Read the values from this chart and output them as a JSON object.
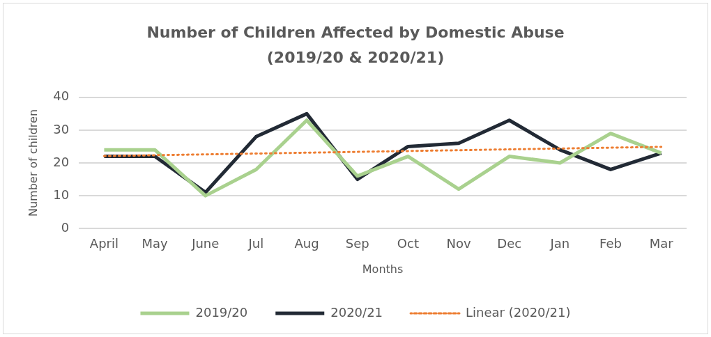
{
  "chart_data": {
    "type": "line",
    "title": "Number of Children Affected by Domestic Abuse (2019/20 & 2020/21)",
    "xlabel": "Months",
    "ylabel": "Number of children",
    "categories": [
      "April",
      "May",
      "June",
      "Jul",
      "Aug",
      "Sep",
      "Oct",
      "Nov",
      "Dec",
      "Jan",
      "Feb",
      "Mar"
    ],
    "series": [
      {
        "name": "2019/20",
        "color": "#a9d18e",
        "values": [
          24,
          24,
          10,
          18,
          33,
          16,
          22,
          12,
          22,
          20,
          29,
          23
        ]
      },
      {
        "name": "2020/21",
        "color": "#222a35",
        "values": [
          22,
          22,
          11,
          28,
          35,
          15,
          25,
          26,
          33,
          24,
          18,
          23
        ]
      },
      {
        "name": "Linear (2020/21)",
        "type": "line",
        "color": "#ed7d31",
        "line_style": "dotted",
        "x": [
          "April",
          "Mar"
        ],
        "values": [
          22.1,
          24.9
        ]
      }
    ],
    "ylim": [
      0,
      40
    ],
    "yticks": [
      0,
      10,
      20,
      30,
      40
    ],
    "grid": "y",
    "legend": "bottom",
    "marker": "none",
    "line_style": "solid"
  }
}
